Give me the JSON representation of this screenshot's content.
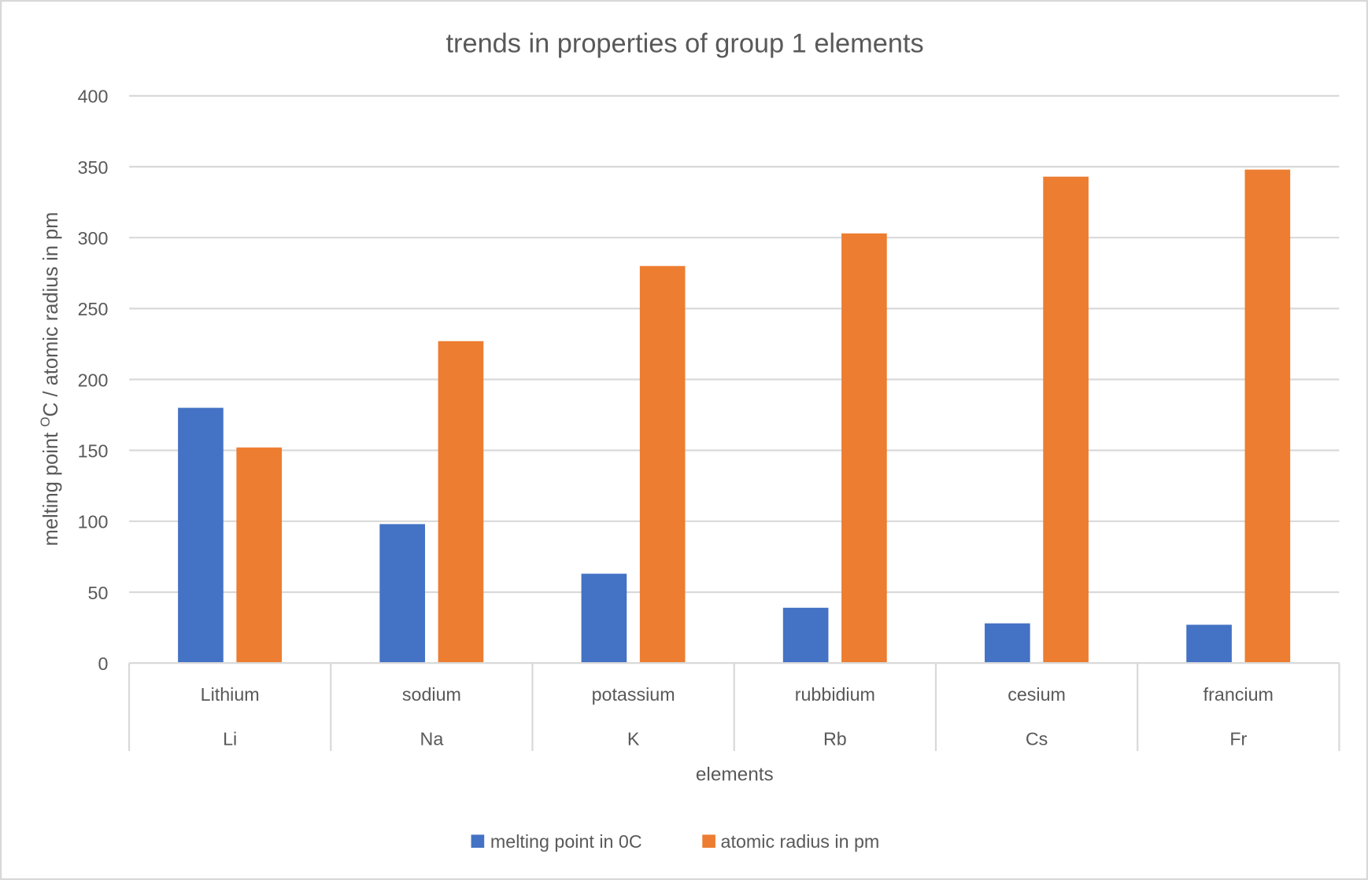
{
  "chart_data": {
    "type": "bar",
    "title": "trends in properties of group 1 elements",
    "xlabel": "elements",
    "ylabel": {
      "before": "melting point ",
      "sup": "O",
      "after": "C / atomic radius in pm"
    },
    "categories": [
      {
        "name": "Lithium",
        "symbol": "Li"
      },
      {
        "name": "sodium",
        "symbol": "Na"
      },
      {
        "name": "potassium",
        "symbol": "K"
      },
      {
        "name": "rubbidium",
        "symbol": "Rb"
      },
      {
        "name": "cesium",
        "symbol": "Cs"
      },
      {
        "name": "francium",
        "symbol": "Fr"
      }
    ],
    "series": [
      {
        "name": "melting point in 0C",
        "color": "#4472C4",
        "values": [
          180,
          98,
          63,
          39,
          28,
          27
        ]
      },
      {
        "name": "atomic radius in pm",
        "color": "#ED7D31",
        "values": [
          152,
          227,
          280,
          303,
          343,
          348
        ]
      }
    ],
    "ylim": [
      0,
      400
    ],
    "yticks": [
      0,
      50,
      100,
      150,
      200,
      250,
      300,
      350,
      400
    ],
    "grid": true,
    "legend": "bottom"
  }
}
